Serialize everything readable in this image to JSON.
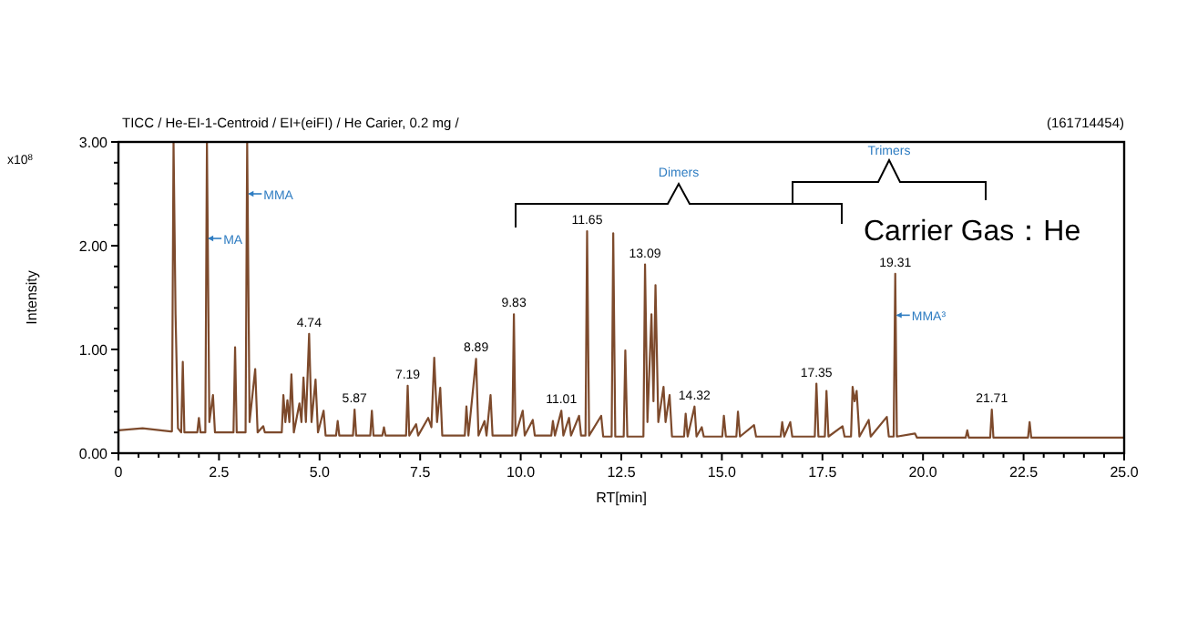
{
  "chart_data": {
    "type": "line",
    "title": "TICC / He-EI-1-Centroid / EI+(eiFI) / He Carier, 0.2 mg /",
    "xlabel": "RT[min]",
    "ylabel": "Intensity",
    "xlim": [
      0,
      25
    ],
    "xticks": [
      0,
      {
        "value": 0.5,
        "label": null
      },
      {
        "value": 1,
        "label": null
      },
      {
        "value": 1.5,
        "label": null
      },
      {
        "value": 2,
        "label": null
      },
      {
        "value": 2.5,
        "label": "2.5"
      },
      {
        "value": 3,
        "label": null
      },
      {
        "value": 3.5,
        "label": null
      },
      {
        "value": 4,
        "label": null
      },
      {
        "value": 4.5,
        "label": null
      },
      {
        "value": 5,
        "label": "5.0"
      },
      {
        "value": 5.5,
        "label": null
      },
      {
        "value": 6,
        "label": null
      },
      {
        "value": 6.5,
        "label": null
      },
      {
        "value": 7,
        "label": null
      },
      {
        "value": 7.5,
        "label": "7.5"
      },
      {
        "value": 8,
        "label": null
      },
      {
        "value": 8.5,
        "label": null
      },
      {
        "value": 9,
        "label": null
      },
      {
        "value": 9.5,
        "label": null
      },
      {
        "value": 10,
        "label": "10.0"
      },
      {
        "value": 10.5,
        "label": null
      },
      {
        "value": 11,
        "label": null
      },
      {
        "value": 11.5,
        "label": null
      },
      {
        "value": 12,
        "label": null
      },
      {
        "value": 12.5,
        "label": "12.5"
      },
      {
        "value": 13,
        "label": null
      },
      {
        "value": 13.5,
        "label": null
      },
      {
        "value": 14,
        "label": null
      },
      {
        "value": 14.5,
        "label": null
      },
      {
        "value": 15,
        "label": "15.0"
      },
      {
        "value": 15.5,
        "label": null
      },
      {
        "value": 16,
        "label": null
      },
      {
        "value": 16.5,
        "label": null
      },
      {
        "value": 17,
        "label": null
      },
      {
        "value": 17.5,
        "label": "17.5"
      },
      {
        "value": 18,
        "label": null
      },
      {
        "value": 18.5,
        "label": null
      },
      {
        "value": 19,
        "label": null
      },
      {
        "value": 19.5,
        "label": null
      },
      {
        "value": 20,
        "label": "20.0"
      },
      {
        "value": 20.5,
        "label": null
      },
      {
        "value": 21,
        "label": null
      },
      {
        "value": 21.5,
        "label": null
      },
      {
        "value": 22,
        "label": null
      },
      {
        "value": 22.5,
        "label": "22.5"
      },
      {
        "value": 23,
        "label": null
      },
      {
        "value": 23.5,
        "label": null
      },
      {
        "value": 24,
        "label": null
      },
      {
        "value": 24.5,
        "label": null
      },
      {
        "value": 25,
        "label": "25.0"
      }
    ],
    "ylim": [
      0,
      3
    ],
    "yticks": [
      {
        "value": 0,
        "label": "0.00"
      },
      {
        "value": 0.2,
        "label": null
      },
      {
        "value": 0.4,
        "label": null
      },
      {
        "value": 0.6,
        "label": null
      },
      {
        "value": 0.8,
        "label": null
      },
      {
        "value": 1,
        "label": "1.00"
      },
      {
        "value": 1.2,
        "label": null
      },
      {
        "value": 1.4,
        "label": null
      },
      {
        "value": 1.6,
        "label": null
      },
      {
        "value": 1.8,
        "label": null
      },
      {
        "value": 2,
        "label": "2.00"
      },
      {
        "value": 2.2,
        "label": null
      },
      {
        "value": 2.4,
        "label": null
      },
      {
        "value": 2.6,
        "label": null
      },
      {
        "value": 2.8,
        "label": null
      },
      {
        "value": 3,
        "label": "3.00"
      }
    ],
    "grid": false,
    "marker": "none",
    "line_style": "solid",
    "series": [
      {
        "color": "#7d4a2c",
        "x": [
          0,
          0.6,
          1.3,
          1.33,
          1.37,
          1.42,
          1.48,
          1.56,
          1.6,
          1.64,
          1.96,
          2.0,
          2.04,
          2.16,
          2.2,
          2.26,
          2.35,
          2.4,
          2.86,
          2.9,
          2.94,
          3.16,
          3.2,
          3.26,
          3.4,
          3.46,
          3.6,
          3.64,
          4.06,
          4.1,
          4.15,
          4.2,
          4.25,
          4.3,
          4.36,
          4.5,
          4.55,
          4.6,
          4.66,
          4.74,
          4.8,
          4.9,
          4.96,
          5.1,
          5.15,
          5.41,
          5.45,
          5.49,
          5.83,
          5.87,
          5.91,
          6.26,
          6.3,
          6.34,
          6.56,
          6.6,
          6.64,
          7.15,
          7.19,
          7.23,
          7.4,
          7.45,
          7.7,
          7.78,
          7.85,
          7.92,
          8.0,
          8.05,
          8.61,
          8.65,
          8.7,
          8.89,
          8.95,
          9.1,
          9.15,
          9.25,
          9.3,
          9.79,
          9.83,
          9.87,
          10.05,
          10.1,
          10.3,
          10.35,
          10.76,
          10.8,
          10.85,
          11.01,
          11.06,
          11.2,
          11.25,
          11.45,
          11.5,
          11.61,
          11.65,
          11.7,
          12.0,
          12.05,
          12.26,
          12.3,
          12.35,
          12.56,
          12.6,
          12.65,
          13.05,
          13.09,
          13.15,
          13.25,
          13.3,
          13.35,
          13.42,
          13.55,
          13.6,
          13.7,
          13.76,
          14.06,
          14.1,
          14.15,
          14.32,
          14.37,
          14.5,
          14.55,
          15.01,
          15.05,
          15.1,
          15.36,
          15.4,
          15.45,
          15.8,
          15.85,
          16.46,
          16.5,
          16.55,
          16.7,
          16.75,
          17.31,
          17.35,
          17.4,
          17.56,
          17.6,
          17.65,
          18.0,
          18.05,
          18.21,
          18.25,
          18.3,
          18.35,
          18.42,
          18.65,
          18.7,
          19.1,
          19.15,
          19.27,
          19.31,
          19.35,
          19.8,
          19.85,
          21.06,
          21.1,
          21.14,
          21.67,
          21.71,
          21.75,
          22.61,
          22.65,
          22.69,
          25
        ],
        "values": [
          0.22,
          0.24,
          0.21,
          0.21,
          3.0,
          1.34,
          0.24,
          0.2,
          0.88,
          0.2,
          0.2,
          0.34,
          0.2,
          0.2,
          3.0,
          0.3,
          0.56,
          0.2,
          0.2,
          1.02,
          0.2,
          0.2,
          3.0,
          0.3,
          0.81,
          0.2,
          0.26,
          0.2,
          0.2,
          0.56,
          0.3,
          0.51,
          0.3,
          0.76,
          0.2,
          0.48,
          0.3,
          0.73,
          0.3,
          1.15,
          0.3,
          0.71,
          0.2,
          0.41,
          0.17,
          0.17,
          0.31,
          0.17,
          0.17,
          0.42,
          0.17,
          0.17,
          0.41,
          0.17,
          0.17,
          0.25,
          0.17,
          0.17,
          0.65,
          0.17,
          0.28,
          0.17,
          0.34,
          0.25,
          0.92,
          0.3,
          0.63,
          0.17,
          0.17,
          0.45,
          0.17,
          0.91,
          0.17,
          0.31,
          0.17,
          0.56,
          0.17,
          0.17,
          1.34,
          0.17,
          0.41,
          0.17,
          0.32,
          0.17,
          0.17,
          0.31,
          0.17,
          0.41,
          0.17,
          0.34,
          0.17,
          0.36,
          0.17,
          0.17,
          2.14,
          0.17,
          0.36,
          0.16,
          0.16,
          2.12,
          0.16,
          0.16,
          0.99,
          0.16,
          0.16,
          1.82,
          0.3,
          1.34,
          0.5,
          1.62,
          0.3,
          0.64,
          0.3,
          0.56,
          0.16,
          0.16,
          0.38,
          0.16,
          0.45,
          0.16,
          0.25,
          0.16,
          0.16,
          0.36,
          0.16,
          0.16,
          0.4,
          0.16,
          0.27,
          0.16,
          0.16,
          0.3,
          0.16,
          0.3,
          0.16,
          0.16,
          0.67,
          0.16,
          0.16,
          0.6,
          0.16,
          0.26,
          0.16,
          0.16,
          0.64,
          0.5,
          0.6,
          0.16,
          0.32,
          0.16,
          0.35,
          0.16,
          0.16,
          1.73,
          0.16,
          0.19,
          0.15,
          0.15,
          0.22,
          0.15,
          0.15,
          0.42,
          0.15,
          0.15,
          0.3,
          0.15,
          0.15
        ]
      }
    ],
    "annotations": [
      {
        "text": "4.74",
        "x": 4.74,
        "y": 1.15
      },
      {
        "text": "5.87",
        "x": 5.87,
        "y": 0.42
      },
      {
        "text": "7.19",
        "x": 7.19,
        "y": 0.65
      },
      {
        "text": "8.89",
        "x": 8.89,
        "y": 0.91
      },
      {
        "text": "9.83",
        "x": 9.83,
        "y": 1.34
      },
      {
        "text": "11.01",
        "x": 11.01,
        "y": 0.41
      },
      {
        "text": "11.65",
        "x": 11.65,
        "y": 2.14
      },
      {
        "text": "13.09",
        "x": 13.09,
        "y": 1.82
      },
      {
        "text": "14.32",
        "x": 14.32,
        "y": 0.45
      },
      {
        "text": "17.35",
        "x": 17.35,
        "y": 0.67
      },
      {
        "text": "19.31",
        "x": 19.31,
        "y": 1.73
      },
      {
        "text": "21.71",
        "x": 21.71,
        "y": 0.42
      },
      {
        "text": "MA",
        "x": 2.2,
        "y": 2.07
      },
      {
        "text": "MMA",
        "x": 3.2,
        "y": 2.5
      },
      {
        "text": "MMA³",
        "x": 19.31,
        "y": 1.33
      },
      "Dimers",
      "Trimers",
      "Carrier Gas：He",
      "(161714454)",
      "x10$^{8}$"
    ]
  }
}
